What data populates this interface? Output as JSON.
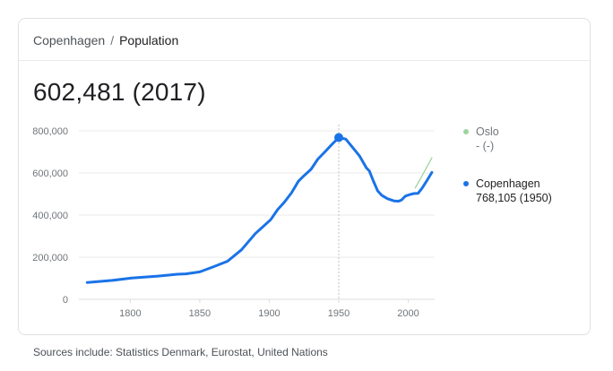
{
  "breadcrumb": {
    "city": "Copenhagen",
    "separator": "/",
    "topic": "Population"
  },
  "headline": "602,481 (2017)",
  "legend": [
    {
      "name": "Oslo",
      "value": "- (-)",
      "color": "#9fd39f"
    },
    {
      "name": "Copenhagen",
      "value": "768,105 (1950)",
      "color": "#1a73e8"
    }
  ],
  "sources": "Sources include: Statistics Denmark, Eurostat, United Nations",
  "chart_data": {
    "type": "line",
    "xlim": [
      1763,
      2019
    ],
    "ylim": [
      0,
      800000
    ],
    "x_ticks": [
      1800,
      1850,
      1900,
      1950,
      2000
    ],
    "y_ticks": [
      0,
      200000,
      400000,
      600000,
      800000
    ],
    "y_tick_labels": [
      "0",
      "200,000",
      "400,000",
      "600,000",
      "800,000"
    ],
    "grid": true,
    "highlight": {
      "x": 1950,
      "y": 768105
    },
    "series": [
      {
        "name": "Copenhagen",
        "color": "#1a73e8",
        "points": [
          [
            1769,
            80000
          ],
          [
            1787,
            90000
          ],
          [
            1801,
            101000
          ],
          [
            1820,
            110000
          ],
          [
            1834,
            119000
          ],
          [
            1840,
            121000
          ],
          [
            1850,
            130000
          ],
          [
            1860,
            155000
          ],
          [
            1870,
            181000
          ],
          [
            1880,
            235000
          ],
          [
            1890,
            312000
          ],
          [
            1901,
            378000
          ],
          [
            1906,
            426000
          ],
          [
            1911,
            462000
          ],
          [
            1916,
            506000
          ],
          [
            1921,
            561000
          ],
          [
            1925,
            587000
          ],
          [
            1930,
            617000
          ],
          [
            1935,
            666000
          ],
          [
            1940,
            700000
          ],
          [
            1945,
            735000
          ],
          [
            1950,
            768105
          ],
          [
            1955,
            761000
          ],
          [
            1960,
            721000
          ],
          [
            1965,
            680000
          ],
          [
            1970,
            623000
          ],
          [
            1972,
            610000
          ],
          [
            1975,
            560000
          ],
          [
            1978,
            515000
          ],
          [
            1981,
            493000
          ],
          [
            1985,
            478000
          ],
          [
            1990,
            467000
          ],
          [
            1993,
            466000
          ],
          [
            1995,
            471000
          ],
          [
            1998,
            490000
          ],
          [
            2001,
            497000
          ],
          [
            2004,
            502000
          ],
          [
            2007,
            503000
          ],
          [
            2010,
            528000
          ],
          [
            2013,
            559000
          ],
          [
            2017,
            602481
          ]
        ]
      },
      {
        "name": "Oslo",
        "color": "#9fd39f",
        "points": [
          [
            2005,
            529000
          ],
          [
            2009,
            575000
          ],
          [
            2013,
            624000
          ],
          [
            2017,
            672000
          ]
        ]
      }
    ]
  }
}
